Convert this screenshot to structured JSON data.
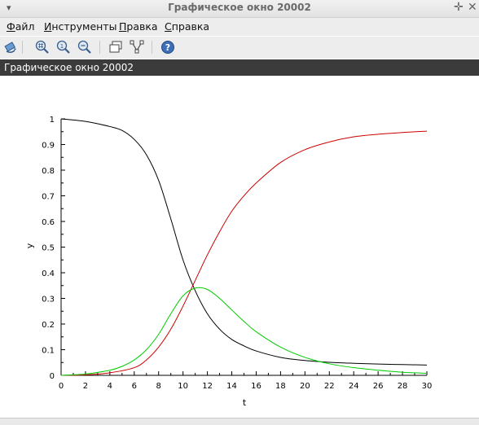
{
  "window": {
    "title": "Графическое окно 20002",
    "menu_arrow": "▾",
    "pin_symbol": "✛",
    "close_symbol": "✕"
  },
  "menu": {
    "items": [
      {
        "first": "Ф",
        "rest": "айл"
      },
      {
        "first": "И",
        "rest": "нструменты"
      },
      {
        "first": "П",
        "rest": "равка"
      },
      {
        "first": "С",
        "rest": "правка"
      }
    ]
  },
  "toolbar": {
    "icons": [
      "rotate-icon",
      "zoom-grid-icon",
      "zoom-in-icon",
      "zoom-out-icon",
      "windows-icon",
      "datatip-icon",
      "help-icon"
    ]
  },
  "figure": {
    "label": "Графическое окно 20002"
  },
  "chart_data": {
    "type": "line",
    "xlabel": "t",
    "ylabel": "y",
    "xlim": [
      0,
      30
    ],
    "ylim": [
      0,
      1
    ],
    "x_ticks": [
      0,
      2,
      4,
      6,
      8,
      10,
      12,
      14,
      16,
      18,
      20,
      22,
      24,
      26,
      28,
      30
    ],
    "y_ticks": [
      0,
      0.1,
      0.2,
      0.3,
      0.4,
      0.5,
      0.6,
      0.7,
      0.8,
      0.9,
      1
    ],
    "grid": false,
    "legend": "none",
    "series": [
      {
        "color": "#000000",
        "x": [
          0,
          2,
          4,
          5,
          6,
          7,
          8,
          9,
          10,
          11,
          12,
          13,
          14,
          15,
          16,
          18,
          20,
          22,
          24,
          26,
          28,
          30
        ],
        "y": [
          1.0,
          0.99,
          0.97,
          0.955,
          0.92,
          0.86,
          0.76,
          0.61,
          0.45,
          0.33,
          0.24,
          0.18,
          0.14,
          0.115,
          0.095,
          0.07,
          0.058,
          0.051,
          0.047,
          0.044,
          0.042,
          0.04
        ]
      },
      {
        "color": "#cc0000",
        "x": [
          0,
          2,
          4,
          6,
          7,
          8,
          9,
          10,
          11,
          12,
          13,
          14,
          15,
          16,
          18,
          20,
          22,
          24,
          26,
          28,
          30
        ],
        "y": [
          0.0,
          0.002,
          0.01,
          0.03,
          0.06,
          0.11,
          0.18,
          0.27,
          0.37,
          0.47,
          0.56,
          0.64,
          0.7,
          0.75,
          0.83,
          0.88,
          0.91,
          0.93,
          0.94,
          0.947,
          0.952
        ]
      },
      {
        "color": "#00cc00",
        "x": [
          0,
          2,
          4,
          5,
          6,
          7,
          8,
          9,
          10,
          11,
          12,
          13,
          14,
          15,
          16,
          18,
          20,
          22,
          24,
          26,
          28,
          30
        ],
        "y": [
          0.0,
          0.005,
          0.02,
          0.035,
          0.06,
          0.1,
          0.16,
          0.24,
          0.31,
          0.34,
          0.335,
          0.3,
          0.255,
          0.21,
          0.17,
          0.11,
          0.07,
          0.045,
          0.03,
          0.02,
          0.012,
          0.008
        ]
      }
    ]
  }
}
